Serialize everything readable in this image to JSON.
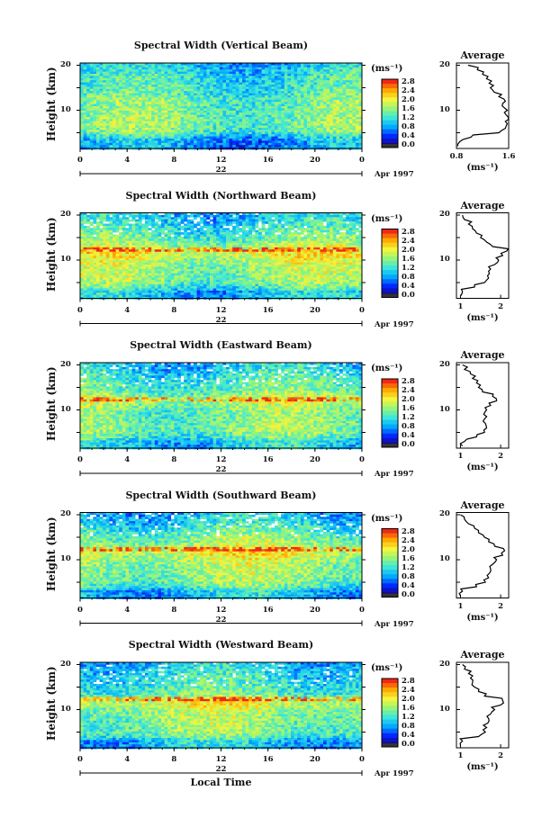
{
  "chart_data": [
    {
      "type": "heatmap",
      "title": "Spectral Width (Vertical Beam)",
      "ylabel": "Height (km)",
      "y_ticks": [
        10,
        20
      ],
      "x_ticks": [
        "0",
        "4",
        "8",
        "12",
        "16",
        "20",
        "0"
      ],
      "day_label": "22",
      "date_label": "Apr 1997",
      "colorbar": {
        "unit": "(ms⁻¹)",
        "ticks": [
          "0.0",
          "0.4",
          "0.8",
          "1.2",
          "1.6",
          "2.0",
          "2.4",
          "2.8"
        ]
      },
      "mean_width_ms": 1.3,
      "average_profile": {
        "title": "Average",
        "x_ticks": [
          "0.8",
          "1.6"
        ],
        "xlim": [
          0.8,
          1.6
        ],
        "xlabel": "(ms⁻¹)",
        "y_ticks": [
          10,
          20
        ],
        "height_km": [
          2,
          3,
          4,
          5,
          6,
          7,
          8,
          9,
          10,
          11,
          12,
          13,
          14,
          15,
          16,
          17,
          18,
          19,
          20
        ],
        "values": [
          0.82,
          0.85,
          1.02,
          1.45,
          1.55,
          1.58,
          1.6,
          1.56,
          1.58,
          1.5,
          1.55,
          1.45,
          1.38,
          1.32,
          1.3,
          1.26,
          1.2,
          1.12,
          0.98
        ]
      }
    },
    {
      "type": "heatmap",
      "title": "Spectral Width (Northward Beam)",
      "ylabel": "Height (km)",
      "y_ticks": [
        10,
        20
      ],
      "x_ticks": [
        "0",
        "4",
        "8",
        "12",
        "16",
        "20",
        "0"
      ],
      "day_label": "22",
      "date_label": "Apr 1997",
      "colorbar": {
        "unit": "(ms⁻¹)",
        "ticks": [
          "0.0",
          "0.4",
          "0.8",
          "1.2",
          "1.6",
          "2.0",
          "2.4",
          "2.8"
        ]
      },
      "mean_width_ms": 1.7,
      "average_profile": {
        "title": "Average",
        "x_ticks": [
          "1",
          "2"
        ],
        "xlim": [
          0.9,
          2.2
        ],
        "xlabel": "(ms⁻¹)",
        "y_ticks": [
          10,
          20
        ],
        "height_km": [
          2,
          3,
          4,
          5,
          6,
          7,
          8,
          9,
          10,
          11,
          12,
          13,
          14,
          15,
          16,
          17,
          18,
          19,
          20
        ],
        "values": [
          1.0,
          1.05,
          1.35,
          1.6,
          1.7,
          1.72,
          1.75,
          1.85,
          1.95,
          2.05,
          2.15,
          1.8,
          1.65,
          1.5,
          1.4,
          1.3,
          1.2,
          1.1,
          1.05
        ]
      }
    },
    {
      "type": "heatmap",
      "title": "Spectral Width (Eastward Beam)",
      "ylabel": "Height (km)",
      "y_ticks": [
        10,
        20
      ],
      "x_ticks": [
        "0",
        "4",
        "8",
        "12",
        "16",
        "20",
        "0"
      ],
      "day_label": "22",
      "date_label": "Apr 1997",
      "colorbar": {
        "unit": "(ms⁻¹)",
        "ticks": [
          "0.0",
          "0.4",
          "0.8",
          "1.2",
          "1.6",
          "2.0",
          "2.4",
          "2.8"
        ]
      },
      "mean_width_ms": 1.7,
      "average_profile": {
        "title": "Average",
        "x_ticks": [
          "1",
          "2"
        ],
        "xlim": [
          0.9,
          2.2
        ],
        "xlabel": "(ms⁻¹)",
        "y_ticks": [
          10,
          20
        ],
        "height_km": [
          2,
          3,
          4,
          5,
          6,
          7,
          8,
          9,
          10,
          11,
          12,
          13,
          14,
          15,
          16,
          17,
          18,
          19,
          20
        ],
        "values": [
          1.05,
          1.1,
          1.4,
          1.6,
          1.65,
          1.62,
          1.6,
          1.58,
          1.65,
          1.75,
          1.9,
          1.8,
          1.55,
          1.45,
          1.4,
          1.3,
          1.25,
          1.1,
          1.05
        ]
      }
    },
    {
      "type": "heatmap",
      "title": "Spectral Width (Southward Beam)",
      "ylabel": "Height (km)",
      "y_ticks": [
        10,
        20
      ],
      "x_ticks": [
        "0",
        "4",
        "8",
        "12",
        "16",
        "20",
        "0"
      ],
      "day_label": "22",
      "date_label": "Apr 1997",
      "colorbar": {
        "unit": "(ms⁻¹)",
        "ticks": [
          "0.0",
          "0.4",
          "0.8",
          "1.2",
          "1.6",
          "2.0",
          "2.4",
          "2.8"
        ]
      },
      "mean_width_ms": 1.7,
      "average_profile": {
        "title": "Average",
        "x_ticks": [
          "1",
          "2"
        ],
        "xlim": [
          0.9,
          2.2
        ],
        "xlabel": "(ms⁻¹)",
        "y_ticks": [
          10,
          20
        ],
        "height_km": [
          2,
          3,
          4,
          5,
          6,
          7,
          8,
          9,
          10,
          11,
          12,
          13,
          14,
          15,
          16,
          17,
          18,
          19,
          20
        ],
        "values": [
          1.0,
          1.05,
          1.4,
          1.62,
          1.7,
          1.72,
          1.75,
          1.8,
          1.9,
          2.05,
          2.1,
          1.85,
          1.7,
          1.6,
          1.45,
          1.35,
          1.2,
          1.1,
          1.0
        ]
      }
    },
    {
      "type": "heatmap",
      "title": "Spectral Width (Westward Beam)",
      "ylabel": "Height (km)",
      "y_ticks": [
        10,
        20
      ],
      "x_ticks": [
        "0",
        "4",
        "8",
        "12",
        "16",
        "20",
        "0"
      ],
      "day_label": "22",
      "date_label": "Apr 1997",
      "xlabel": "Local Time",
      "colorbar": {
        "unit": "(ms⁻¹)",
        "ticks": [
          "0.0",
          "0.4",
          "0.8",
          "1.2",
          "1.6",
          "2.0",
          "2.4",
          "2.8"
        ]
      },
      "mean_width_ms": 1.7,
      "average_profile": {
        "title": "Average",
        "x_ticks": [
          "1",
          "2"
        ],
        "xlim": [
          0.9,
          2.2
        ],
        "xlabel": "(ms⁻¹)",
        "y_ticks": [
          10,
          20
        ],
        "height_km": [
          2,
          3,
          4,
          5,
          6,
          7,
          8,
          9,
          10,
          11,
          12,
          13,
          14,
          15,
          16,
          17,
          18,
          19,
          20
        ],
        "values": [
          1.0,
          1.05,
          1.45,
          1.62,
          1.65,
          1.68,
          1.7,
          1.75,
          1.85,
          2.0,
          2.05,
          1.6,
          1.45,
          1.35,
          1.3,
          1.25,
          1.2,
          1.1,
          1.05
        ]
      }
    }
  ]
}
